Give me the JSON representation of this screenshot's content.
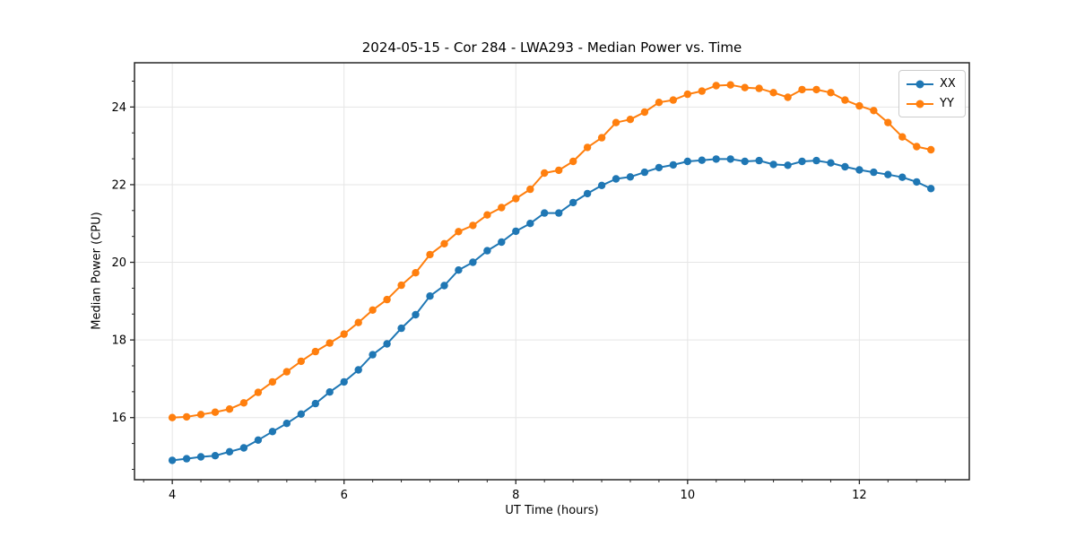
{
  "figure": {
    "title": "2024-05-15 - Cor 284 - LWA293 - Median Power vs. Time",
    "xlabel": "UT Time (hours)",
    "ylabel": "Median Power (CPU)"
  },
  "legend": {
    "items": [
      {
        "label": "XX",
        "color": "#1f77b4"
      },
      {
        "label": "YY",
        "color": "#ff7f0e"
      }
    ]
  },
  "colors": {
    "series_xx": "#1f77b4",
    "series_yy": "#ff7f0e",
    "grid": "#e5e5e5",
    "spine": "#262626",
    "background": "#ffffff"
  },
  "chart_data": {
    "type": "line",
    "title": "2024-05-15 - Cor 284 - LWA293 - Median Power vs. Time",
    "xlabel": "UT Time (hours)",
    "ylabel": "Median Power (CPU)",
    "grid": true,
    "legend_position": "upper right",
    "marker": "o",
    "xlim": [
      3.56,
      13.28
    ],
    "ylim": [
      14.4,
      25.14
    ],
    "x_ticks": [
      4,
      6,
      8,
      10,
      12
    ],
    "y_ticks": [
      16,
      18,
      20,
      22,
      24
    ],
    "x_minor_step": 0.33333,
    "y_minor_step": 0.66667,
    "x": [
      4.0,
      4.167,
      4.333,
      4.5,
      4.667,
      4.833,
      5.0,
      5.167,
      5.333,
      5.5,
      5.667,
      5.833,
      6.0,
      6.167,
      6.333,
      6.5,
      6.667,
      6.833,
      7.0,
      7.167,
      7.333,
      7.5,
      7.667,
      7.833,
      8.0,
      8.167,
      8.333,
      8.5,
      8.667,
      8.833,
      9.0,
      9.167,
      9.333,
      9.5,
      9.667,
      9.833,
      10.0,
      10.167,
      10.333,
      10.5,
      10.667,
      10.833,
      11.0,
      11.167,
      11.333,
      11.5,
      11.667,
      11.833,
      12.0,
      12.167,
      12.333,
      12.5,
      12.667,
      12.833
    ],
    "series": [
      {
        "name": "XX",
        "color": "#1f77b4",
        "values": [
          14.9,
          14.94,
          14.99,
          15.02,
          15.12,
          15.22,
          15.42,
          15.64,
          15.85,
          16.09,
          16.36,
          16.66,
          16.92,
          17.23,
          17.62,
          17.9,
          18.3,
          18.65,
          19.13,
          19.4,
          19.8,
          20.0,
          20.3,
          20.52,
          20.8,
          21.0,
          21.27,
          21.27,
          21.54,
          21.77,
          21.98,
          22.15,
          22.2,
          22.32,
          22.44,
          22.51,
          22.6,
          22.63,
          22.66,
          22.66,
          22.6,
          22.62,
          22.52,
          22.5,
          22.6,
          22.62,
          22.56,
          22.46,
          22.38,
          22.32,
          22.26,
          22.19,
          22.07,
          21.9
        ]
      },
      {
        "name": "YY",
        "color": "#ff7f0e",
        "values": [
          16.0,
          16.02,
          16.08,
          16.14,
          16.22,
          16.38,
          16.65,
          16.92,
          17.18,
          17.45,
          17.7,
          17.92,
          18.15,
          18.45,
          18.77,
          19.04,
          19.41,
          19.73,
          20.2,
          20.48,
          20.79,
          20.95,
          21.22,
          21.41,
          21.64,
          21.88,
          22.3,
          22.37,
          22.6,
          22.96,
          23.21,
          23.6,
          23.68,
          23.87,
          24.12,
          24.18,
          24.33,
          24.41,
          24.55,
          24.57,
          24.5,
          24.48,
          24.37,
          24.25,
          24.45,
          24.45,
          24.37,
          24.18,
          24.03,
          23.91,
          23.6,
          23.23,
          22.98,
          22.9
        ]
      }
    ]
  }
}
